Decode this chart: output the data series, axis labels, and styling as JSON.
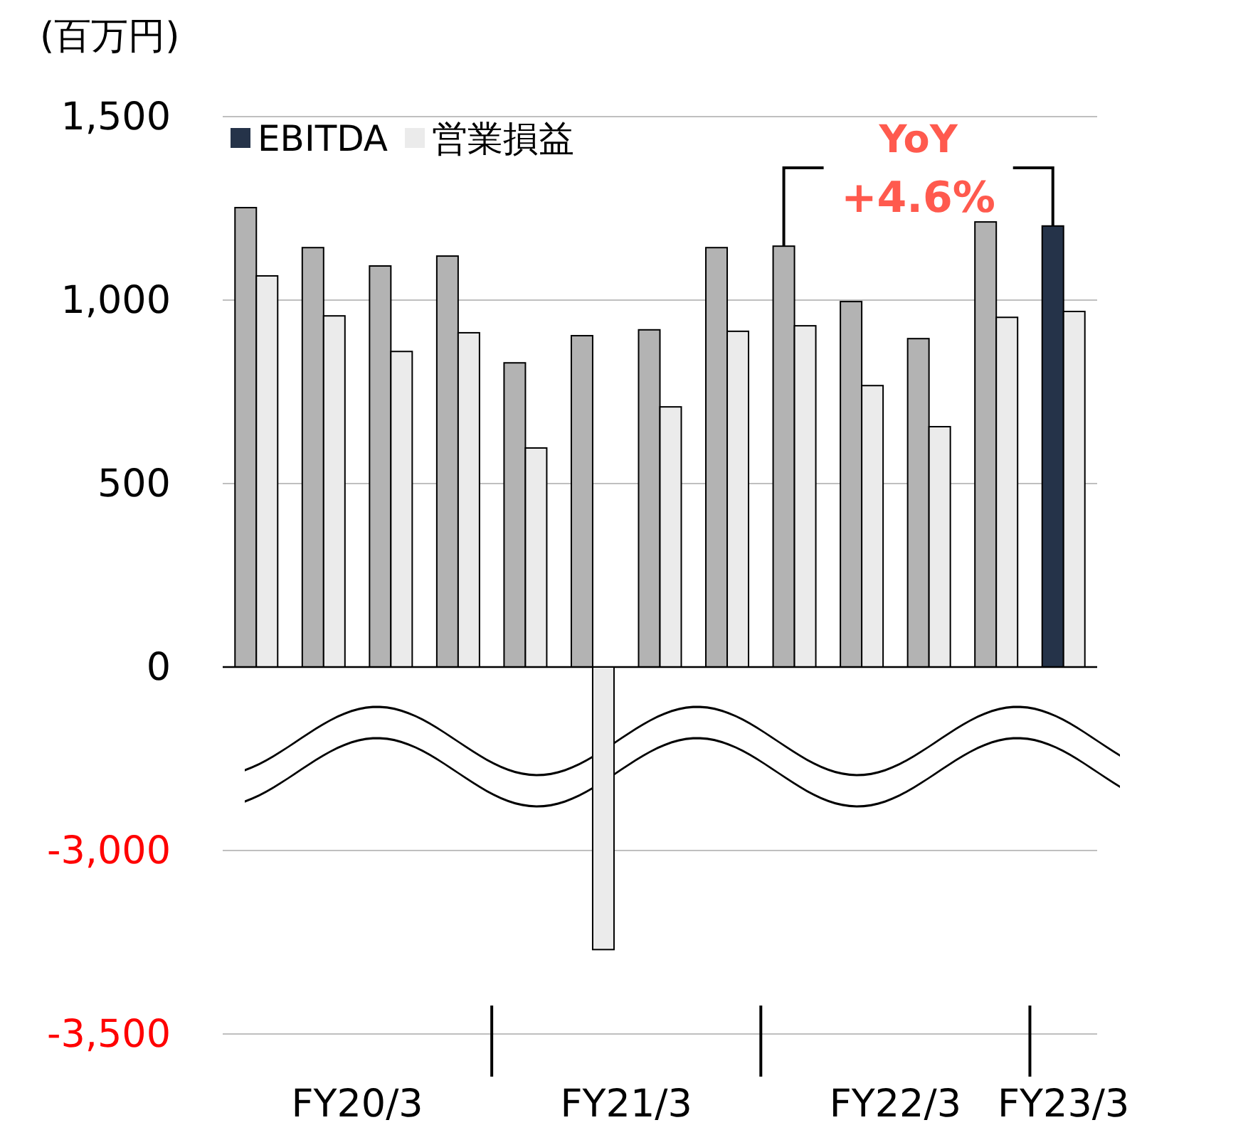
{
  "chart_data": [
    {
      "type": "bar",
      "ylabel": "(百万円)",
      "categories": [
        null,
        null,
        null,
        null,
        null,
        null,
        null,
        null,
        null,
        null,
        null,
        null,
        null
      ],
      "ylim": [
        0,
        1500
      ],
      "yticks": [
        {
          "value": 1500,
          "label": "1,500"
        },
        {
          "value": 1000,
          "label": "1,000"
        },
        500,
        0
      ],
      "grid": "y",
      "legend": "top left",
      "tick_labels": "y",
      "series": [
        {
          "name": "EBITDA",
          "color": "#253349",
          "colors": [
            "#b3b3b3",
            "#b3b3b3",
            "#b3b3b3",
            "#b3b3b3",
            "#b3b3b3",
            "#b3b3b3",
            "#b3b3b3",
            "#b3b3b3",
            "#b3b3b3",
            "#b3b3b3",
            "#b3b3b3",
            "#b3b3b3",
            "#253349"
          ],
          "values": [
            1252,
            1143,
            1093,
            1120,
            829,
            903,
            919,
            1143,
            1147,
            996,
            895,
            1213,
            1202
          ]
        },
        {
          "name": "営業損益",
          "color": "#ebebeb",
          "values": [
            1066,
            957,
            860,
            911,
            597,
            null,
            709,
            915,
            930,
            767,
            655,
            953,
            969
          ]
        }
      ],
      "annotations": [
        "YoY\n+4.6%"
      ]
    },
    {
      "type": "bar",
      "categories": [
        null,
        null,
        null,
        null,
        null,
        null,
        null,
        null,
        null,
        null,
        null,
        null,
        null
      ],
      "ylim": [
        -3500,
        -2500
      ],
      "yticks": [
        {
          "value": -3000,
          "label": "-3,000"
        },
        {
          "value": -3500,
          "label": "-3,500"
        }
      ],
      "grid": "y",
      "legend": false,
      "series": [
        {
          "values": [
            null,
            null,
            null,
            null,
            null,
            null,
            null,
            null,
            null,
            null,
            null,
            null,
            null
          ]
        },
        {
          "color": "#ebebeb",
          "values": [
            null,
            null,
            null,
            null,
            null,
            -3270,
            null,
            null,
            null,
            null,
            null,
            null,
            null
          ]
        }
      ],
      "annotations": [
        "FY20/3",
        "FY21/3",
        "FY22/3",
        "FY23/3"
      ]
    }
  ]
}
